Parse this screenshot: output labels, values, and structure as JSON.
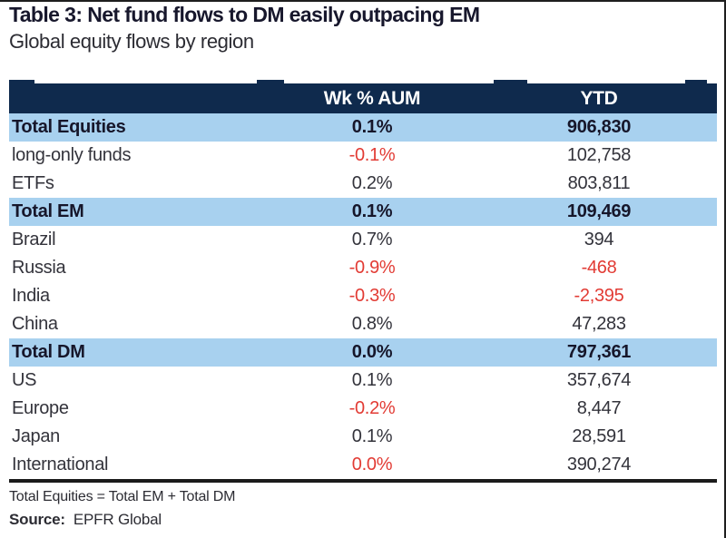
{
  "chart_data": {
    "type": "table",
    "title": "Table 3: Net fund flows to DM easily outpacing EM",
    "subtitle": "Global equity flows by region",
    "columns": [
      "",
      "Wk % AUM",
      "YTD"
    ],
    "rows": [
      {
        "label": "Total Equities",
        "wk": "0.1%",
        "ytd": "906,830",
        "highlight": true,
        "wk_red": false,
        "ytd_red": false
      },
      {
        "label": "long-only funds",
        "wk": "-0.1%",
        "ytd": "102,758",
        "highlight": false,
        "wk_red": true,
        "ytd_red": false
      },
      {
        "label": "ETFs",
        "wk": "0.2%",
        "ytd": "803,811",
        "highlight": false,
        "wk_red": false,
        "ytd_red": false
      },
      {
        "label": "Total EM",
        "wk": "0.1%",
        "ytd": "109,469",
        "highlight": true,
        "wk_red": false,
        "ytd_red": false
      },
      {
        "label": "Brazil",
        "wk": "0.7%",
        "ytd": "394",
        "highlight": false,
        "wk_red": false,
        "ytd_red": false
      },
      {
        "label": "Russia",
        "wk": "-0.9%",
        "ytd": "-468",
        "highlight": false,
        "wk_red": true,
        "ytd_red": true
      },
      {
        "label": "India",
        "wk": "-0.3%",
        "ytd": "-2,395",
        "highlight": false,
        "wk_red": true,
        "ytd_red": true
      },
      {
        "label": "China",
        "wk": "0.8%",
        "ytd": "47,283",
        "highlight": false,
        "wk_red": false,
        "ytd_red": false
      },
      {
        "label": "Total DM",
        "wk": "0.0%",
        "ytd": "797,361",
        "highlight": true,
        "wk_red": false,
        "ytd_red": false
      },
      {
        "label": "US",
        "wk": "0.1%",
        "ytd": "357,674",
        "highlight": false,
        "wk_red": false,
        "ytd_red": false
      },
      {
        "label": "Europe",
        "wk": "-0.2%",
        "ytd": "8,447",
        "highlight": false,
        "wk_red": true,
        "ytd_red": false
      },
      {
        "label": "Japan",
        "wk": "0.1%",
        "ytd": "28,591",
        "highlight": false,
        "wk_red": false,
        "ytd_red": false
      },
      {
        "label": "International",
        "wk": "0.0%",
        "ytd": "390,274",
        "highlight": false,
        "wk_red": true,
        "ytd_red": false
      }
    ],
    "footnote": "Total Equities = Total EM + Total DM",
    "source_label": "Source:",
    "source_value": "EPFR Global",
    "layout_hints": {
      "highlight_rows": [
        "Total Equities",
        "Total EM",
        "Total DM"
      ],
      "value_alignment": "center"
    }
  },
  "colors": {
    "header_bg": "#0f2a4d",
    "header_text": "#ffffff",
    "highlight_row_bg": "#a8d1ef",
    "negative_value": "#e23b34",
    "body_text": "#33333b",
    "title_text": "#17172c"
  }
}
